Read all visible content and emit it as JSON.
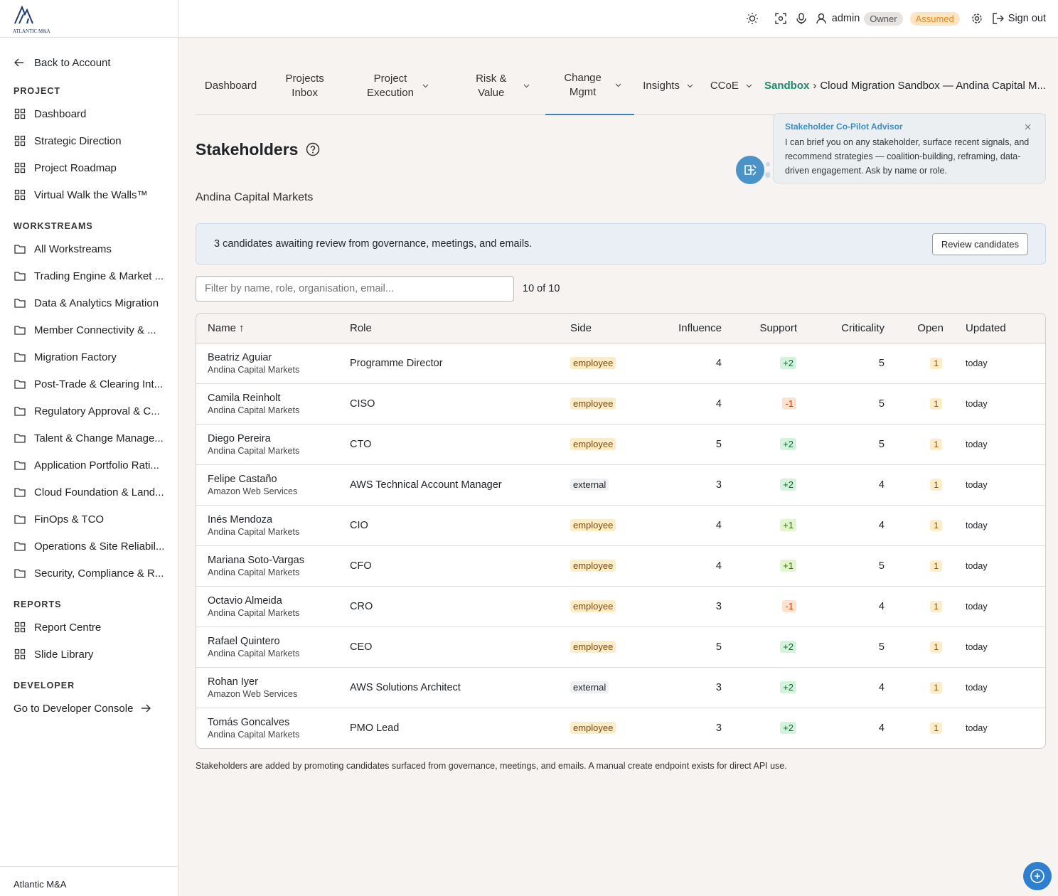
{
  "sidebar": {
    "logo": "ATLANTIC M&A",
    "back": "Back to Account",
    "sections": [
      {
        "title": "PROJECT",
        "items": [
          "Dashboard",
          "Strategic Direction",
          "Project Roadmap",
          "Virtual Walk the Walls™"
        ]
      },
      {
        "title": "WORKSTREAMS",
        "items": [
          "All Workstreams",
          "Trading Engine & Market ...",
          "Data & Analytics Migration",
          "Member Connectivity & ...",
          "Migration Factory",
          "Post-Trade & Clearing Int...",
          "Regulatory Approval & C...",
          "Talent & Change Manage...",
          "Application Portfolio Rati...",
          "Cloud Foundation & Land...",
          "FinOps & TCO",
          "Operations & Site Reliabil...",
          "Security, Compliance & R..."
        ]
      },
      {
        "title": "REPORTS",
        "items": [
          "Report Centre",
          "Slide Library"
        ]
      },
      {
        "title": "DEVELOPER",
        "items": [
          "Go to Developer Console"
        ]
      }
    ],
    "footer": "Atlantic M&A"
  },
  "topbar": {
    "user": "admin",
    "role_badge": "Owner",
    "status_badge": "Assumed",
    "sign_out": "Sign out"
  },
  "tabs": [
    "Dashboard",
    "Projects Inbox",
    "Project Execution",
    "Risk & Value",
    "Change Mgmt",
    "Insights",
    "CCoE"
  ],
  "breadcrumb": {
    "root": "Sandbox",
    "separator": "›",
    "current": "Cloud Migration Sandbox — Andina Capital M..."
  },
  "header": {
    "title": "Stakeholders",
    "subtitle": "Andina Capital Markets"
  },
  "advisor": {
    "title": "Stakeholder Co-Pilot Advisor",
    "text": "I can brief you on any stakeholder, surface recent signals, and recommend strategies — coalition-building, reframing, data-driven engagement. Ask by name or role."
  },
  "banner": {
    "text": "3 candidates awaiting review from governance, meetings, and emails.",
    "button": "Review candidates"
  },
  "filter": {
    "placeholder": "Filter by name, role, organisation, email...",
    "count": "10 of 10"
  },
  "table": {
    "headers": [
      "Name",
      "Role",
      "Side",
      "Influence",
      "Support",
      "Criticality",
      "Open",
      "Updated"
    ],
    "sort_indicator": "↑",
    "rows": [
      {
        "name": "Beatriz Aguiar",
        "org": "Andina Capital Markets",
        "role": "Programme Director",
        "side": "employee",
        "influence": 4,
        "support": "+2",
        "criticality": 5,
        "open": 1,
        "updated": "today"
      },
      {
        "name": "Camila Reinholt",
        "org": "Andina Capital Markets",
        "role": "CISO",
        "side": "employee",
        "influence": 4,
        "support": "-1",
        "criticality": 5,
        "open": 1,
        "updated": "today"
      },
      {
        "name": "Diego Pereira",
        "org": "Andina Capital Markets",
        "role": "CTO",
        "side": "employee",
        "influence": 5,
        "support": "+2",
        "criticality": 5,
        "open": 1,
        "updated": "today"
      },
      {
        "name": "Felipe Castaño",
        "org": "Amazon Web Services",
        "role": "AWS Technical Account Manager",
        "side": "external",
        "influence": 3,
        "support": "+2",
        "criticality": 4,
        "open": 1,
        "updated": "today"
      },
      {
        "name": "Inés Mendoza",
        "org": "Andina Capital Markets",
        "role": "CIO",
        "side": "employee",
        "influence": 4,
        "support": "+1",
        "criticality": 4,
        "open": 1,
        "updated": "today"
      },
      {
        "name": "Mariana Soto-Vargas",
        "org": "Andina Capital Markets",
        "role": "CFO",
        "side": "employee",
        "influence": 4,
        "support": "+1",
        "criticality": 5,
        "open": 1,
        "updated": "today"
      },
      {
        "name": "Octavio Almeida",
        "org": "Andina Capital Markets",
        "role": "CRO",
        "side": "employee",
        "influence": 3,
        "support": "-1",
        "criticality": 4,
        "open": 1,
        "updated": "today"
      },
      {
        "name": "Rafael Quintero",
        "org": "Andina Capital Markets",
        "role": "CEO",
        "side": "employee",
        "influence": 5,
        "support": "+2",
        "criticality": 5,
        "open": 1,
        "updated": "today"
      },
      {
        "name": "Rohan Iyer",
        "org": "Amazon Web Services",
        "role": "AWS Solutions Architect",
        "side": "external",
        "influence": 3,
        "support": "+2",
        "criticality": 4,
        "open": 1,
        "updated": "today"
      },
      {
        "name": "Tomás Goncalves",
        "org": "Andina Capital Markets",
        "role": "PMO Lead",
        "side": "employee",
        "influence": 3,
        "support": "+2",
        "criticality": 4,
        "open": 1,
        "updated": "today"
      }
    ]
  },
  "footnote": "Stakeholders are added by promoting candidates surfaced from governance, meetings, and emails. A manual create endpoint exists for direct API use."
}
